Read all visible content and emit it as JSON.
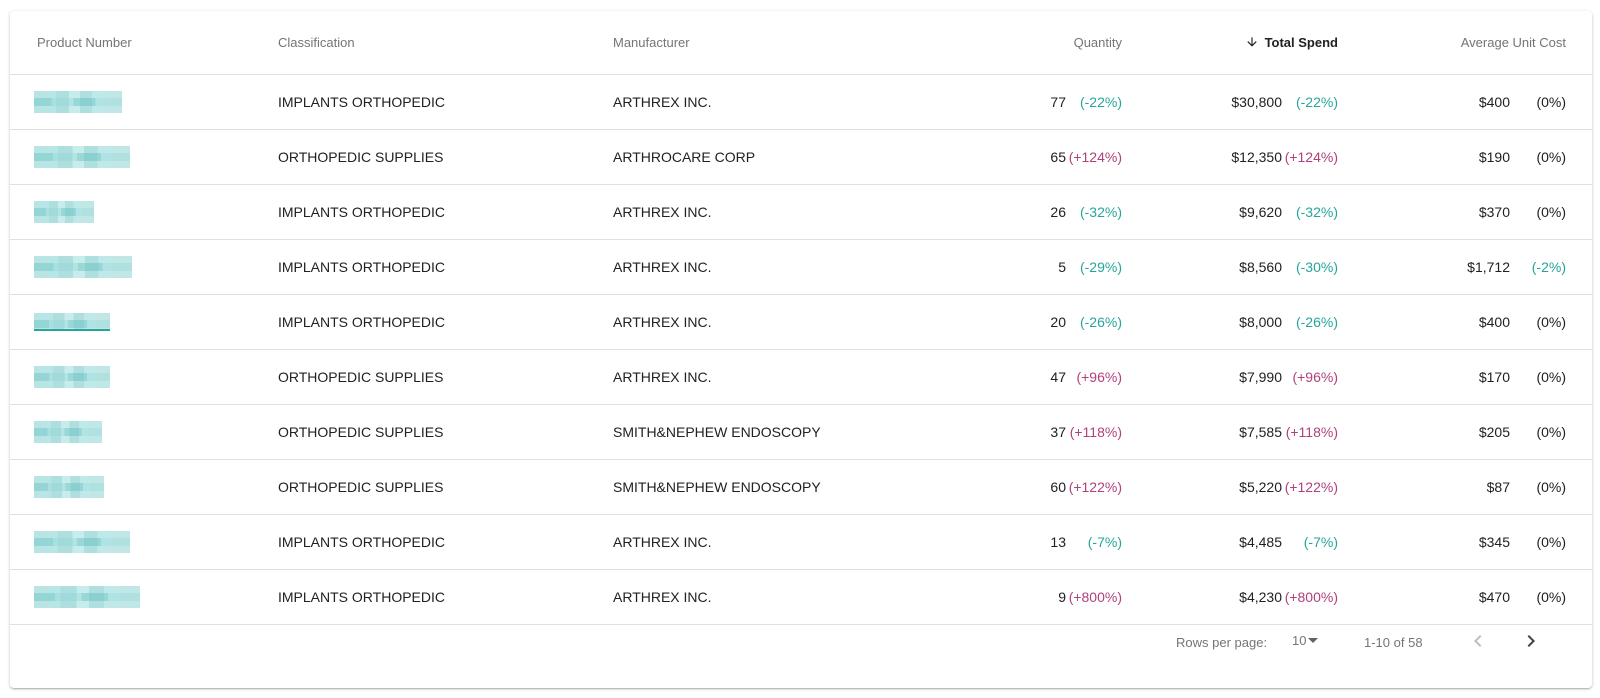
{
  "table": {
    "headers": {
      "product_number": "Product Number",
      "classification": "Classification",
      "manufacturer": "Manufacturer",
      "quantity": "Quantity",
      "total_spend": "Total Spend",
      "average_unit_cost": "Average Unit Cost"
    },
    "sort": {
      "column": "total_spend",
      "direction": "descending",
      "icon": "arrow-down-icon"
    },
    "rows": [
      {
        "classification": "IMPLANTS ORTHOPEDIC",
        "manufacturer": "ARTHREX INC.",
        "quantity": "77",
        "quantity_delta": "(-22%)",
        "total_spend": "$30,800",
        "total_spend_delta": "(-22%)",
        "avg_cost": "$400",
        "avg_cost_delta": "(0%)"
      },
      {
        "classification": "ORTHOPEDIC SUPPLIES",
        "manufacturer": "ARTHROCARE CORP",
        "quantity": "65",
        "quantity_delta": "(+124%)",
        "total_spend": "$12,350",
        "total_spend_delta": "(+124%)",
        "avg_cost": "$190",
        "avg_cost_delta": "(0%)"
      },
      {
        "classification": "IMPLANTS ORTHOPEDIC",
        "manufacturer": "ARTHREX INC.",
        "quantity": "26",
        "quantity_delta": "(-32%)",
        "total_spend": "$9,620",
        "total_spend_delta": "(-32%)",
        "avg_cost": "$370",
        "avg_cost_delta": "(0%)"
      },
      {
        "classification": "IMPLANTS ORTHOPEDIC",
        "manufacturer": "ARTHREX INC.",
        "quantity": "5",
        "quantity_delta": "(-29%)",
        "total_spend": "$8,560",
        "total_spend_delta": "(-30%)",
        "avg_cost": "$1,712",
        "avg_cost_delta": "(-2%)"
      },
      {
        "classification": "IMPLANTS ORTHOPEDIC",
        "manufacturer": "ARTHREX INC.",
        "quantity": "20",
        "quantity_delta": "(-26%)",
        "total_spend": "$8,000",
        "total_spend_delta": "(-26%)",
        "avg_cost": "$400",
        "avg_cost_delta": "(0%)"
      },
      {
        "classification": "ORTHOPEDIC SUPPLIES",
        "manufacturer": "ARTHREX INC.",
        "quantity": "47",
        "quantity_delta": "(+96%)",
        "total_spend": "$7,990",
        "total_spend_delta": "(+96%)",
        "avg_cost": "$170",
        "avg_cost_delta": "(0%)"
      },
      {
        "classification": "ORTHOPEDIC SUPPLIES",
        "manufacturer": "SMITH&NEPHEW ENDOSCOPY",
        "quantity": "37",
        "quantity_delta": "(+118%)",
        "total_spend": "$7,585",
        "total_spend_delta": "(+118%)",
        "avg_cost": "$205",
        "avg_cost_delta": "(0%)"
      },
      {
        "classification": "ORTHOPEDIC SUPPLIES",
        "manufacturer": "SMITH&NEPHEW ENDOSCOPY",
        "quantity": "60",
        "quantity_delta": "(+122%)",
        "total_spend": "$5,220",
        "total_spend_delta": "(+122%)",
        "avg_cost": "$87",
        "avg_cost_delta": "(0%)"
      },
      {
        "classification": "IMPLANTS ORTHOPEDIC",
        "manufacturer": "ARTHREX INC.",
        "quantity": "13",
        "quantity_delta": "(-7%)",
        "total_spend": "$4,485",
        "total_spend_delta": "(-7%)",
        "avg_cost": "$345",
        "avg_cost_delta": "(0%)"
      },
      {
        "classification": "IMPLANTS ORTHOPEDIC",
        "manufacturer": "ARTHREX INC.",
        "quantity": "9",
        "quantity_delta": "(+800%)",
        "total_spend": "$4,230",
        "total_spend_delta": "(+800%)",
        "avg_cost": "$470",
        "avg_cost_delta": "(0%)"
      }
    ]
  },
  "pagination": {
    "rows_per_page_label": "Rows per page:",
    "rows_per_page_value": "10",
    "range_text": "1-10 of 58",
    "prev_icon": "chevron-left-icon",
    "next_icon": "chevron-right-icon"
  },
  "colors": {
    "negative": "#26a69a",
    "positive": "#b0417c",
    "neutral": "#212121"
  }
}
